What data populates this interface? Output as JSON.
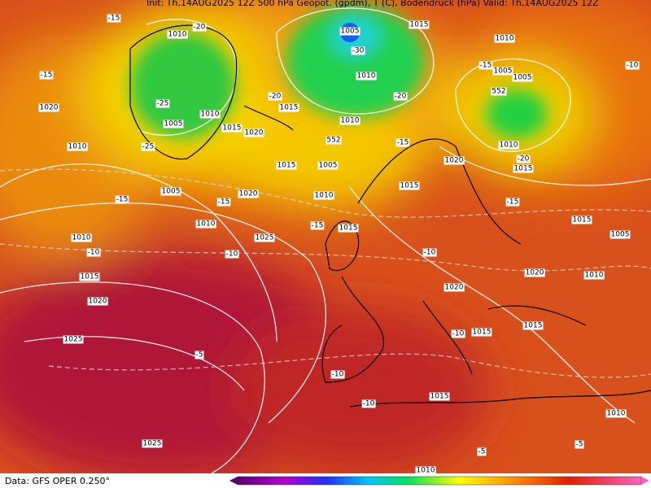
{
  "header": {
    "title": "Init: Th,14AUG2025 12Z   500 hPa Geopot. (gpdm), T (C), Bodendruck (hPa)   Valid: Th,14AUG2025 12Z"
  },
  "footer": {
    "source": "Data: GFS OPER 0.250°"
  },
  "map": {
    "labels": [
      "1010",
      "-20",
      "1005",
      "1015",
      "1010",
      "-15",
      "-15",
      "-30",
      "1010",
      "-15",
      "1005",
      "1005",
      "-10",
      "1020",
      "-25",
      "1010",
      "1015",
      "-20",
      "-20",
      "552",
      "1005",
      "1015",
      "1020",
      "1010",
      "552",
      "-15",
      "1010",
      "1010",
      "-25",
      "1015",
      "1005",
      "1020",
      "-20",
      "1015",
      "-15",
      "1005",
      "-15",
      "1020",
      "1010",
      "1015",
      "-15",
      "1010",
      "-15",
      "1015",
      "1015",
      "1010",
      "1025",
      "-10",
      "-10",
      "-10",
      "1005",
      "1015",
      "1020",
      "1020",
      "1010",
      "1020",
      "1015",
      "-10",
      "1015",
      "1025",
      "-5",
      "-10",
      "-10",
      "1015",
      "1010",
      "1025",
      "-5",
      "-5",
      "1010"
    ]
  }
}
